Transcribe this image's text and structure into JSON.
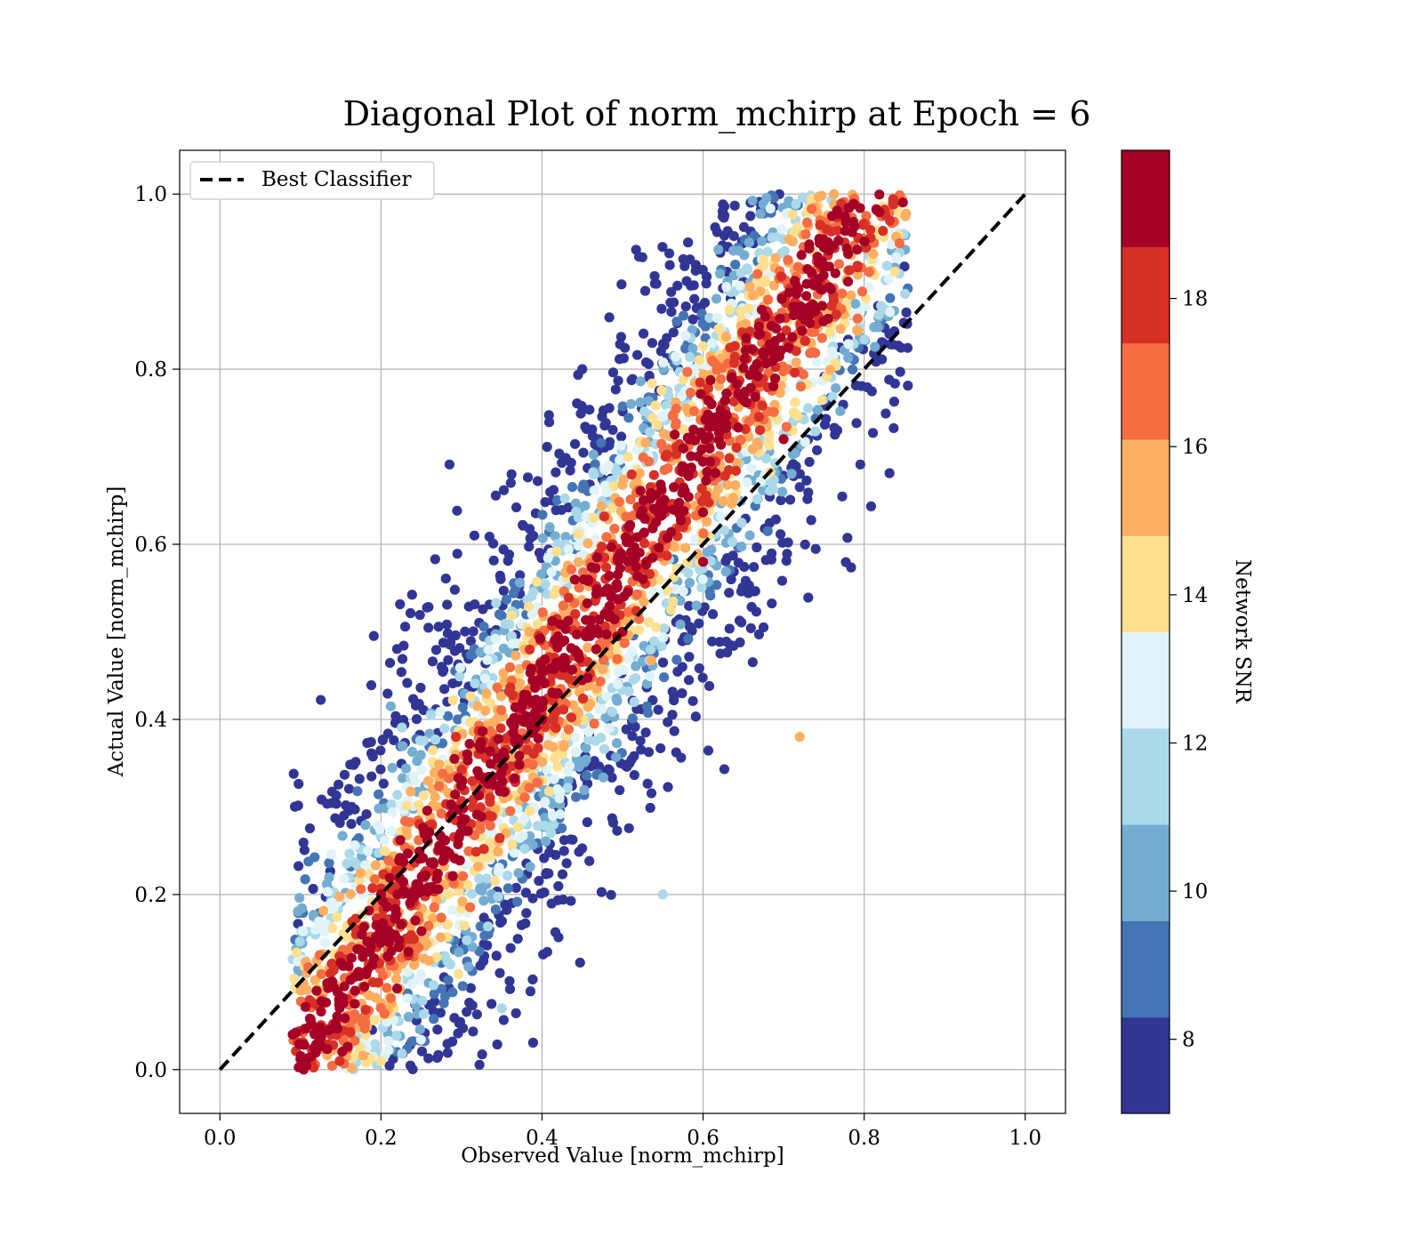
{
  "chart_data": {
    "type": "scatter",
    "title": "Diagonal Plot of norm_mchirp at Epoch = 6",
    "xlabel": "Observed Value [norm_mchirp]",
    "ylabel": "Actual Value [norm_mchirp]",
    "xlim": [
      -0.05,
      1.05
    ],
    "ylim": [
      -0.05,
      1.05
    ],
    "xticks": [
      "0.0",
      "0.2",
      "0.4",
      "0.6",
      "0.8",
      "1.0"
    ],
    "yticks": [
      "0.0",
      "0.2",
      "0.4",
      "0.6",
      "0.8",
      "1.0"
    ],
    "grid": true,
    "legend": {
      "position": "top-left",
      "entries": [
        {
          "label": "Best Classifier",
          "style": "black dashed line"
        }
      ]
    },
    "reference_line": {
      "label": "Best Classifier",
      "x": [
        0.0,
        1.0
      ],
      "y": [
        0.0,
        1.0
      ]
    },
    "colorbar": {
      "label": "Network SNR",
      "range": [
        7.0,
        20.0
      ],
      "ticks": [
        "8",
        "10",
        "12",
        "14",
        "16",
        "18"
      ],
      "bins": [
        {
          "from": 7.0,
          "to": 8.3,
          "color": "#313695"
        },
        {
          "from": 8.3,
          "to": 9.6,
          "color": "#4575b4"
        },
        {
          "from": 9.6,
          "to": 10.9,
          "color": "#74add1"
        },
        {
          "from": 10.9,
          "to": 12.2,
          "color": "#abd9e9"
        },
        {
          "from": 12.2,
          "to": 13.5,
          "color": "#e0f3f8"
        },
        {
          "from": 13.5,
          "to": 14.8,
          "color": "#fee090"
        },
        {
          "from": 14.8,
          "to": 16.1,
          "color": "#fdae61"
        },
        {
          "from": 16.1,
          "to": 17.4,
          "color": "#f46d43"
        },
        {
          "from": 17.4,
          "to": 18.7,
          "color": "#d73027"
        },
        {
          "from": 18.7,
          "to": 20.0,
          "color": "#a50026"
        }
      ]
    },
    "scatter_description": {
      "x_range": [
        0.09,
        0.85
      ],
      "y_range": [
        0.0,
        1.0
      ],
      "points": [
        {
          "x": 0.12,
          "y": 0.09,
          "snr": 19
        },
        {
          "x": 0.2,
          "y": 0.2,
          "snr": 19
        },
        {
          "x": 0.3,
          "y": 0.28,
          "snr": 19
        },
        {
          "x": 0.4,
          "y": 0.4,
          "snr": 19
        },
        {
          "x": 0.5,
          "y": 0.5,
          "snr": 19
        },
        {
          "x": 0.6,
          "y": 0.58,
          "snr": 19
        },
        {
          "x": 0.7,
          "y": 0.72,
          "snr": 19
        },
        {
          "x": 0.78,
          "y": 0.9,
          "snr": 19
        },
        {
          "x": 0.45,
          "y": 0.8,
          "snr": 8
        },
        {
          "x": 0.35,
          "y": 0.07,
          "snr": 11
        },
        {
          "x": 0.72,
          "y": 0.38,
          "snr": 16
        },
        {
          "x": 0.55,
          "y": 0.2,
          "snr": 12
        }
      ]
    }
  }
}
